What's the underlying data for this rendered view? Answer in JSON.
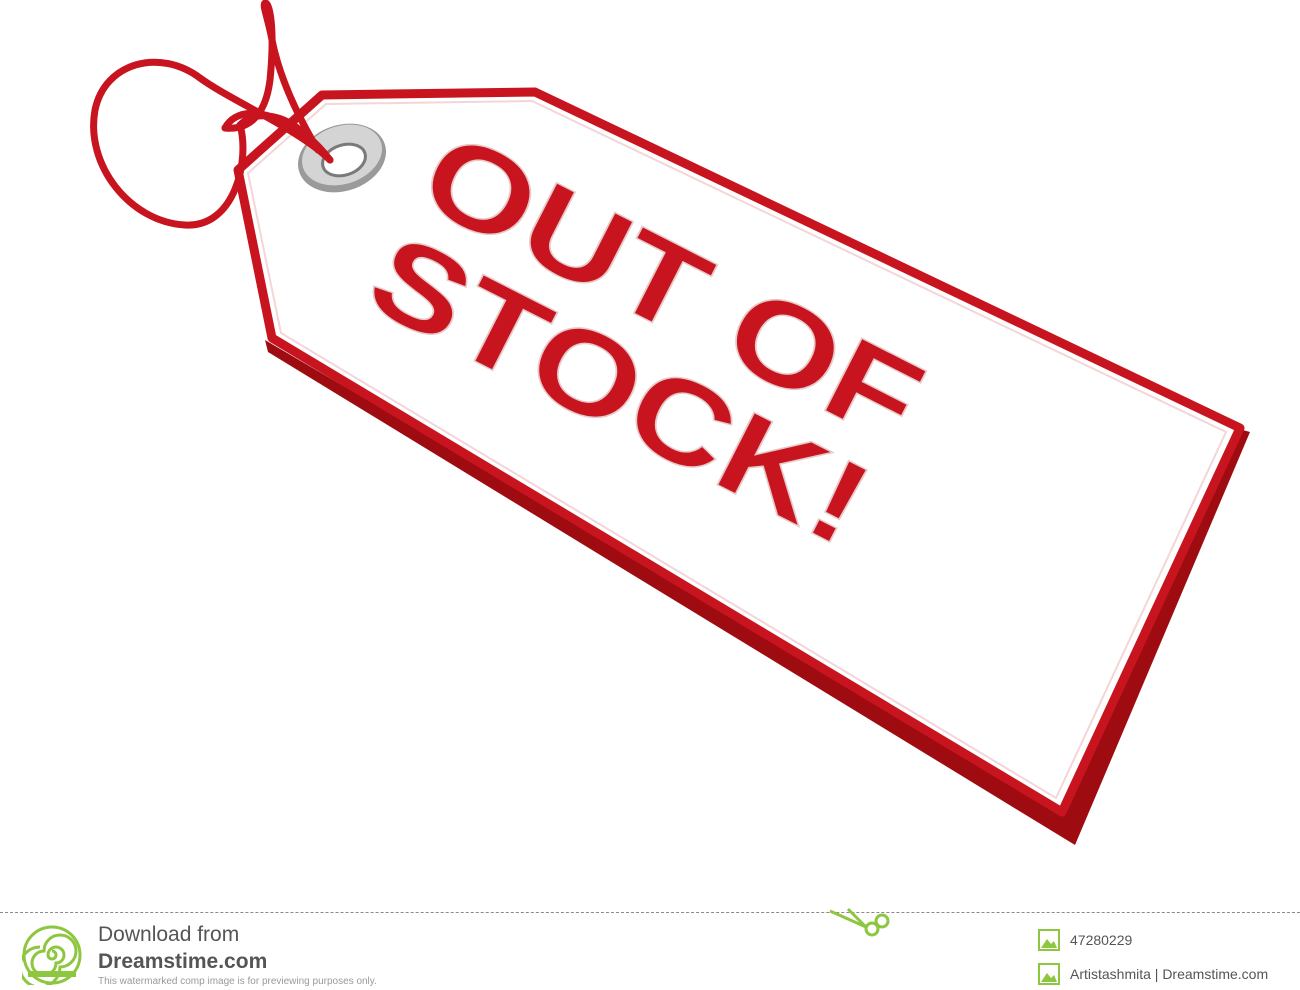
{
  "tag": {
    "line1": "OUT OF",
    "line2": "STOCK!",
    "red": "#c8141e",
    "dark_red": "#9e0c12",
    "eyelet_gray": "#b0b0b0"
  },
  "footer": {
    "download_from": "Download from",
    "site": "Dreamstime.com",
    "notice": "This watermarked comp image is for previewing purposes only.",
    "image_id": "47280229",
    "credit": "Artistashmita | Dreamstime.com",
    "accent": "#8dc63f",
    "icons": {
      "logo": "dreamstime-spiral-logo-icon",
      "scissors": "scissors-icon",
      "image": "image-icon",
      "author": "author-icon"
    }
  }
}
